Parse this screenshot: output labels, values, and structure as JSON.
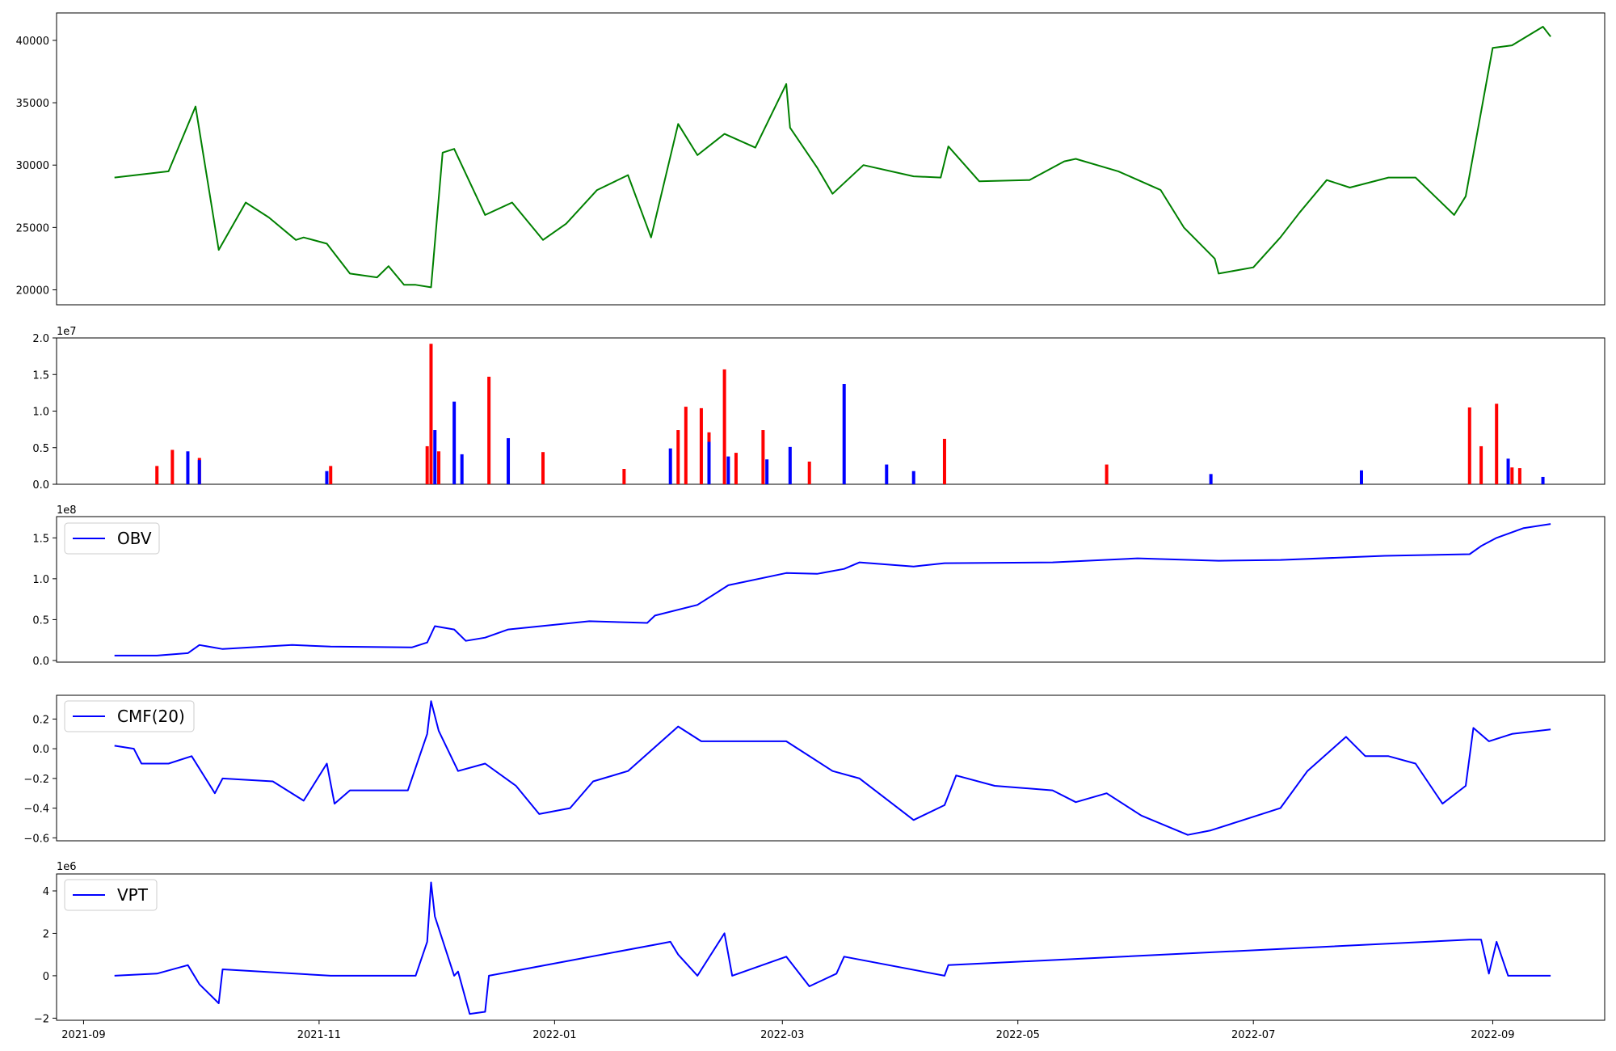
{
  "colors": {
    "price": "#008000",
    "volume_up": "#ff0000",
    "volume_down": "#0000ff",
    "indicator": "#0000ff"
  },
  "chart_data": [
    {
      "type": "line",
      "panel": "price",
      "x_range": [
        "2021-08-25",
        "2022-09-30"
      ],
      "ylim": [
        18800,
        42200
      ],
      "yticks": [
        "20000",
        "25000",
        "30000",
        "35000",
        "40000"
      ],
      "grid": false,
      "x": [
        "2021-09-09",
        "2021-09-23",
        "2021-09-30",
        "2021-10-06",
        "2021-10-13",
        "2021-10-19",
        "2021-10-26",
        "2021-10-28",
        "2021-11-03",
        "2021-11-09",
        "2021-11-16",
        "2021-11-19",
        "2021-11-23",
        "2021-11-26",
        "2021-11-30",
        "2021-12-03",
        "2021-12-06",
        "2021-12-14",
        "2021-12-21",
        "2021-12-29",
        "2022-01-04",
        "2022-01-12",
        "2022-01-20",
        "2022-01-26",
        "2022-02-02",
        "2022-02-07",
        "2022-02-14",
        "2022-02-22",
        "2022-03-02",
        "2022-03-03",
        "2022-03-10",
        "2022-03-14",
        "2022-03-22",
        "2022-04-04",
        "2022-04-11",
        "2022-04-13",
        "2022-04-21",
        "2022-05-04",
        "2022-05-13",
        "2022-05-16",
        "2022-05-27",
        "2022-06-07",
        "2022-06-13",
        "2022-06-21",
        "2022-06-22",
        "2022-07-01",
        "2022-07-08",
        "2022-07-13",
        "2022-07-20",
        "2022-07-26",
        "2022-08-05",
        "2022-08-12",
        "2022-08-22",
        "2022-08-25",
        "2022-09-01",
        "2022-09-06",
        "2022-09-14",
        "2022-09-16"
      ],
      "values": [
        29000,
        29500,
        34700,
        23200,
        27000,
        25800,
        24000,
        24200,
        23700,
        21300,
        21000,
        21900,
        20400,
        20400,
        20200,
        31000,
        31300,
        26000,
        27000,
        24000,
        25300,
        28000,
        29200,
        24200,
        33300,
        30800,
        32500,
        31400,
        36500,
        33000,
        29800,
        27700,
        30000,
        29100,
        29000,
        31500,
        28700,
        28800,
        30300,
        30500,
        29500,
        28000,
        25000,
        22500,
        21300,
        21800,
        24200,
        26200,
        28800,
        28200,
        29000,
        29000,
        26000,
        27500,
        39400,
        39600,
        41100,
        40300
      ]
    },
    {
      "type": "bar",
      "panel": "volume",
      "ylim": [
        0,
        20000000
      ],
      "yticks": [
        "0.0",
        "0.5",
        "1.0",
        "1.5",
        "2.0"
      ],
      "y_scale_label": "1e7",
      "series": [
        {
          "color_key": "volume_up",
          "x": [
            "2021-09-20",
            "2021-09-24",
            "2021-10-01",
            "2021-11-04",
            "2021-11-29",
            "2021-11-30",
            "2021-12-02",
            "2021-12-15",
            "2021-12-29",
            "2022-01-19",
            "2022-02-02",
            "2022-02-04",
            "2022-02-08",
            "2022-02-10",
            "2022-02-14",
            "2022-02-17",
            "2022-02-24",
            "2022-03-08",
            "2022-04-12",
            "2022-05-24",
            "2022-08-26",
            "2022-08-29",
            "2022-09-02",
            "2022-09-06",
            "2022-09-08"
          ],
          "values": [
            2500000,
            4700000,
            3600000,
            2500000,
            5200000,
            19200000,
            4500000,
            14700000,
            4400000,
            2100000,
            7400000,
            10600000,
            10400000,
            7100000,
            15700000,
            4300000,
            7400000,
            3100000,
            6200000,
            2700000,
            10500000,
            5200000,
            11000000,
            2300000,
            2200000
          ]
        },
        {
          "color_key": "volume_down",
          "x": [
            "2021-09-28",
            "2021-10-01",
            "2021-11-03",
            "2021-12-01",
            "2021-12-06",
            "2021-12-08",
            "2021-12-20",
            "2022-01-31",
            "2022-02-10",
            "2022-02-15",
            "2022-02-25",
            "2022-03-03",
            "2022-03-17",
            "2022-03-28",
            "2022-04-04",
            "2022-06-20",
            "2022-07-29",
            "2022-09-05",
            "2022-09-14"
          ],
          "values": [
            4500000,
            3300000,
            1800000,
            7400000,
            11300000,
            4100000,
            6300000,
            4900000,
            5800000,
            3800000,
            3400000,
            5100000,
            13700000,
            2700000,
            1800000,
            1400000,
            1900000,
            3500000,
            1000000
          ]
        }
      ]
    },
    {
      "type": "line",
      "panel": "obv",
      "legend": "OBV",
      "legend_position": "upper-left",
      "ylim": [
        -2000000,
        176000000
      ],
      "yticks": [
        "0.0",
        "0.5",
        "1.0",
        "1.5"
      ],
      "y_scale_label": "1e8",
      "x": [
        "2021-09-09",
        "2021-09-20",
        "2021-09-28",
        "2021-10-01",
        "2021-10-07",
        "2021-10-25",
        "2021-11-04",
        "2021-11-25",
        "2021-11-29",
        "2021-12-01",
        "2021-12-06",
        "2021-12-09",
        "2021-12-14",
        "2021-12-20",
        "2022-01-10",
        "2022-01-25",
        "2022-01-27",
        "2022-02-07",
        "2022-02-15",
        "2022-03-02",
        "2022-03-10",
        "2022-03-17",
        "2022-03-21",
        "2022-04-04",
        "2022-04-12",
        "2022-05-10",
        "2022-06-01",
        "2022-06-22",
        "2022-07-08",
        "2022-08-04",
        "2022-08-26",
        "2022-08-29",
        "2022-09-02",
        "2022-09-09",
        "2022-09-16"
      ],
      "values": [
        6000000,
        6000000,
        9000000,
        19000000,
        14000000,
        19000000,
        17000000,
        16000000,
        22000000,
        42000000,
        38000000,
        24000000,
        28000000,
        38000000,
        48000000,
        46000000,
        55000000,
        68000000,
        92000000,
        107000000,
        106000000,
        112000000,
        120000000,
        115000000,
        119000000,
        120000000,
        125000000,
        122000000,
        123000000,
        128000000,
        130000000,
        140000000,
        150000000,
        162000000,
        167000000
      ]
    },
    {
      "type": "line",
      "panel": "cmf",
      "legend": "CMF(20)",
      "legend_position": "upper-left",
      "ylim": [
        -0.62,
        0.36
      ],
      "yticks": [
        "−0.6",
        "−0.4",
        "−0.2",
        "0.0",
        "0.2"
      ],
      "x": [
        "2021-09-09",
        "2021-09-14",
        "2021-09-16",
        "2021-09-23",
        "2021-09-29",
        "2021-10-05",
        "2021-10-07",
        "2021-10-20",
        "2021-10-28",
        "2021-11-03",
        "2021-11-05",
        "2021-11-09",
        "2021-11-24",
        "2021-11-29",
        "2021-11-30",
        "2021-12-02",
        "2021-12-07",
        "2021-12-14",
        "2021-12-22",
        "2021-12-28",
        "2022-01-05",
        "2022-01-11",
        "2022-01-20",
        "2022-02-02",
        "2022-02-08",
        "2022-03-02",
        "2022-03-14",
        "2022-03-21",
        "2022-04-01",
        "2022-04-04",
        "2022-04-12",
        "2022-04-15",
        "2022-04-25",
        "2022-05-10",
        "2022-05-16",
        "2022-05-24",
        "2022-06-02",
        "2022-06-14",
        "2022-06-20",
        "2022-07-08",
        "2022-07-15",
        "2022-07-25",
        "2022-07-30",
        "2022-08-05",
        "2022-08-12",
        "2022-08-19",
        "2022-08-25",
        "2022-08-27",
        "2022-08-31",
        "2022-09-06",
        "2022-09-16"
      ],
      "values": [
        0.02,
        0.0,
        -0.1,
        -0.1,
        -0.05,
        -0.3,
        -0.2,
        -0.22,
        -0.35,
        -0.1,
        -0.37,
        -0.28,
        -0.28,
        0.1,
        0.32,
        0.12,
        -0.15,
        -0.1,
        -0.25,
        -0.44,
        -0.4,
        -0.22,
        -0.15,
        0.15,
        0.05,
        0.05,
        -0.15,
        -0.2,
        -0.42,
        -0.48,
        -0.38,
        -0.18,
        -0.25,
        -0.28,
        -0.36,
        -0.3,
        -0.45,
        -0.58,
        -0.55,
        -0.4,
        -0.15,
        0.08,
        -0.05,
        -0.05,
        -0.1,
        -0.37,
        -0.25,
        0.14,
        0.05,
        0.1,
        0.13
      ]
    },
    {
      "type": "line",
      "panel": "vpt",
      "legend": "VPT",
      "legend_position": "upper-left",
      "ylim": [
        -2100000,
        4800000
      ],
      "yticks": [
        "−2",
        "0",
        "2",
        "4"
      ],
      "y_scale_label": "1e6",
      "x_tick_labels": [
        "2021-09",
        "2021-11",
        "2022-01",
        "2022-03",
        "2022-05",
        "2022-07",
        "2022-09"
      ],
      "x": [
        "2021-09-09",
        "2021-09-20",
        "2021-09-28",
        "2021-10-01",
        "2021-10-06",
        "2021-10-07",
        "2021-11-04",
        "2021-11-26",
        "2021-11-29",
        "2021-11-30",
        "2021-12-01",
        "2021-12-06",
        "2021-12-07",
        "2021-12-10",
        "2021-12-14",
        "2021-12-15",
        "2022-01-28",
        "2022-01-31",
        "2022-02-02",
        "2022-02-07",
        "2022-02-14",
        "2022-02-16",
        "2022-03-02",
        "2022-03-08",
        "2022-03-15",
        "2022-03-17",
        "2022-04-12",
        "2022-04-13",
        "2022-08-26",
        "2022-08-29",
        "2022-08-31",
        "2022-09-02",
        "2022-09-05",
        "2022-09-16"
      ],
      "values": [
        0,
        100000,
        500000,
        -400000,
        -1300000,
        300000,
        0,
        0,
        1600000,
        4400000,
        2800000,
        0,
        200000,
        -1800000,
        -1700000,
        0,
        1500000,
        1600000,
        1000000,
        0,
        2000000,
        0,
        900000,
        -500000,
        100000,
        900000,
        0,
        500000,
        1700000,
        1700000,
        100000,
        1600000,
        0,
        0
      ]
    }
  ]
}
